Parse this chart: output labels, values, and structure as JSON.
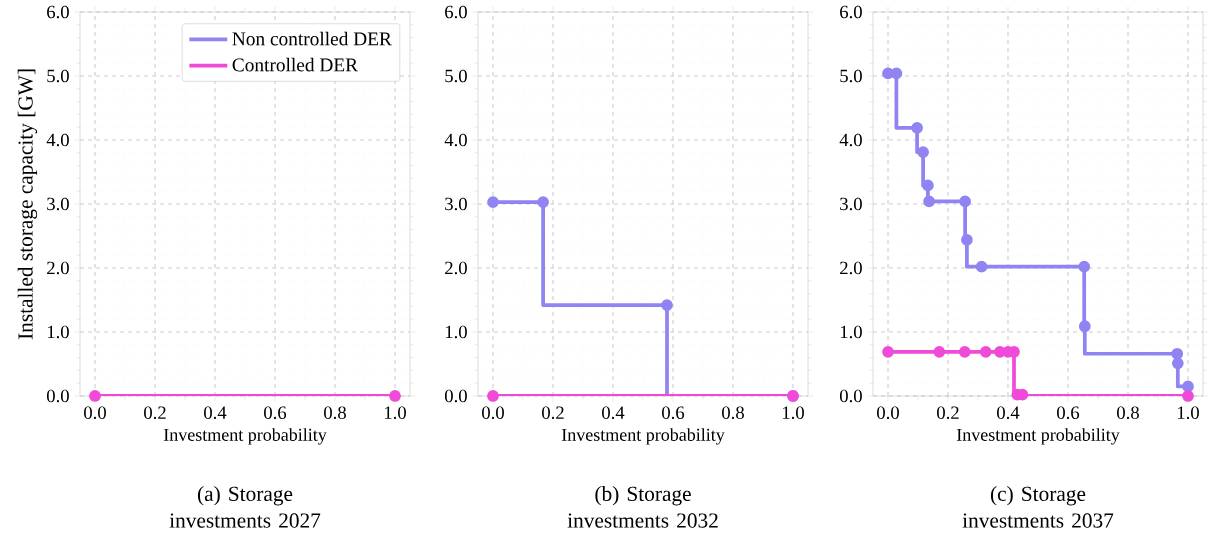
{
  "chart_data": [
    {
      "type": "step",
      "title": "(a) Storage investments 2027",
      "xlabel": "Investment probability",
      "ylabel": "Installed storage capacity [GW]",
      "xlim": [
        -0.05,
        1.05
      ],
      "ylim": [
        0,
        6
      ],
      "xticks": [
        {
          "value": 0,
          "label": "0.0"
        },
        {
          "value": 0.2,
          "label": "0.2"
        },
        {
          "value": 0.4,
          "label": "0.4"
        },
        {
          "value": 0.6,
          "label": "0.6"
        },
        {
          "value": 0.8,
          "label": "0.8"
        },
        {
          "value": 1,
          "label": "1.0"
        }
      ],
      "yticks": [
        {
          "value": 0,
          "label": "0.0"
        },
        {
          "value": 1,
          "label": "1.0"
        },
        {
          "value": 2,
          "label": "2.0"
        },
        {
          "value": 3,
          "label": "3.0"
        },
        {
          "value": 4,
          "label": "4.0"
        },
        {
          "value": 5,
          "label": "5.0"
        },
        {
          "value": 6,
          "label": "6.0"
        }
      ],
      "grid": true,
      "legend": "top right",
      "marker": "circle",
      "series": [
        {
          "name": "Non controlled DER",
          "color": "#8f84f2",
          "values": [
            null,
            null
          ]
        },
        {
          "name": "Controlled DER",
          "color": "#f04ad8",
          "x": [
            0,
            1
          ],
          "values": [
            0,
            0
          ]
        }
      ]
    },
    {
      "type": "step",
      "title": "(b) Storage investments 2032",
      "xlabel": "Investment probability",
      "xlim": [
        -0.05,
        1.05
      ],
      "ylim": [
        0,
        6
      ],
      "xticks": [
        {
          "value": 0,
          "label": "0.0"
        },
        {
          "value": 0.2,
          "label": "0.2"
        },
        {
          "value": 0.4,
          "label": "0.4"
        },
        {
          "value": 0.6,
          "label": "0.6"
        },
        {
          "value": 0.8,
          "label": "0.8"
        },
        {
          "value": 1,
          "label": "1.0"
        }
      ],
      "yticks": [
        {
          "value": 0,
          "label": "0.0"
        },
        {
          "value": 1,
          "label": "1.0"
        },
        {
          "value": 2,
          "label": "2.0"
        },
        {
          "value": 3,
          "label": "3.0"
        },
        {
          "value": 4,
          "label": "4.0"
        },
        {
          "value": 5,
          "label": "5.0"
        },
        {
          "value": 6,
          "label": "6.0"
        }
      ],
      "grid": true,
      "marker": "circle",
      "series": [
        {
          "color": "#8f84f2",
          "x": [
            0,
            0.167,
            0.58,
            1
          ],
          "values": [
            3.03,
            3.03,
            1.42,
            0
          ]
        },
        {
          "color": "#f04ad8",
          "x": [
            0,
            1
          ],
          "values": [
            0,
            0
          ]
        }
      ]
    },
    {
      "type": "step",
      "title": "(c) Storage investments 2037",
      "xlabel": "Investment probability",
      "xlim": [
        -0.05,
        1.05
      ],
      "ylim": [
        0,
        6
      ],
      "xticks": [
        {
          "value": 0,
          "label": "0.0"
        },
        {
          "value": 0.2,
          "label": "0.2"
        },
        {
          "value": 0.4,
          "label": "0.4"
        },
        {
          "value": 0.6,
          "label": "0.6"
        },
        {
          "value": 0.8,
          "label": "0.8"
        },
        {
          "value": 1,
          "label": "1.0"
        }
      ],
      "yticks": [
        {
          "value": 0,
          "label": "0.0"
        },
        {
          "value": 1,
          "label": "1.0"
        },
        {
          "value": 2,
          "label": "2.0"
        },
        {
          "value": 3,
          "label": "3.0"
        },
        {
          "value": 4,
          "label": "4.0"
        },
        {
          "value": 5,
          "label": "5.0"
        },
        {
          "value": 6,
          "label": "6.0"
        }
      ],
      "grid": true,
      "marker": "circle",
      "series": [
        {
          "color": "#8f84f2",
          "x": [
            0,
            0.028,
            0.097,
            0.117,
            0.133,
            0.137,
            0.257,
            0.263,
            0.312,
            0.654,
            0.656,
            0.964,
            0.966,
            1
          ],
          "values": [
            5.04,
            5.04,
            4.19,
            3.81,
            3.29,
            3.04,
            3.04,
            2.44,
            2.02,
            2.02,
            1.09,
            0.66,
            0.51,
            0.15
          ]
        },
        {
          "color": "#f04ad8",
          "x": [
            0,
            0.171,
            0.256,
            0.326,
            0.373,
            0.4,
            0.42,
            0.431,
            0.448,
            1
          ],
          "values": [
            0.69,
            0.69,
            0.69,
            0.69,
            0.69,
            0.69,
            0.69,
            0.02,
            0.02,
            0
          ]
        }
      ]
    }
  ]
}
